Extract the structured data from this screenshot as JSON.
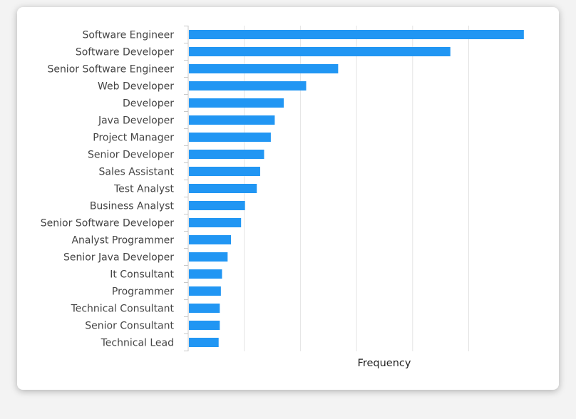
{
  "chart_data": {
    "type": "bar",
    "orientation": "horizontal",
    "categories": [
      "Software Engineer",
      "Software Developer",
      "Senior Software Engineer",
      "Web Developer",
      "Developer",
      "Java Developer",
      "Project Manager",
      "Senior Developer",
      "Sales Assistant",
      "Test Analyst",
      "Business Analyst",
      "Senior Software Developer",
      "Analyst Programmer",
      "Senior Java Developer",
      "It Consultant",
      "Programmer",
      "Technical Consultant",
      "Senior Consultant",
      "Technical Lead"
    ],
    "values": [
      597,
      466,
      266,
      209,
      169,
      153,
      146,
      134,
      127,
      121,
      100,
      93,
      75,
      69,
      59,
      57,
      55,
      55,
      53
    ],
    "xlabel": "Frequency",
    "ylabel": "",
    "xlim": [
      0,
      620
    ],
    "gridlines": [
      0,
      100,
      200,
      300,
      400,
      500
    ],
    "grid": true,
    "tick_labels_visible": false,
    "bar_color": "#2196f3",
    "grid_color": "#e3e3e3",
    "axis_color": "#c9c9c9"
  }
}
